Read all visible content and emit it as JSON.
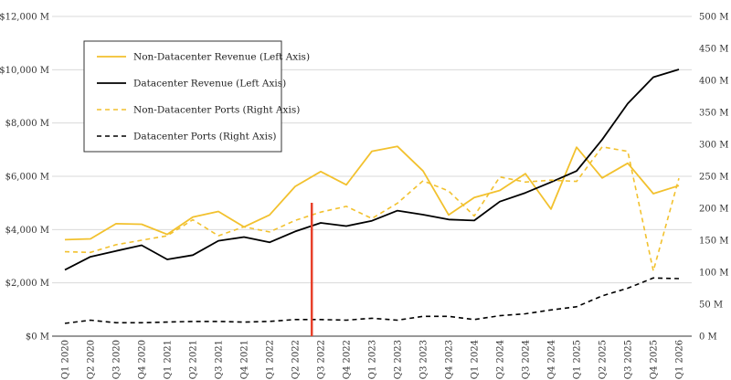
{
  "chart_data": {
    "type": "line",
    "categories": [
      "Q1 2020",
      "Q2 2020",
      "Q3 2020",
      "Q4 2020",
      "Q1 2021",
      "Q2 2021",
      "Q3 2021",
      "Q4 2021",
      "Q1 2022",
      "Q2 2022",
      "Q3 2022",
      "Q4 2022",
      "Q1 2023",
      "Q2 2023",
      "Q3 2023",
      "Q4 2023",
      "Q1 2024",
      "Q2 2024",
      "Q3 2024",
      "Q4 2024",
      "Q1 2025",
      "Q2 2025",
      "Q3 2025",
      "Q4 2025",
      "Q1 2026"
    ],
    "left_axis": {
      "ylim": [
        0,
        12000
      ],
      "ticks": [
        0,
        2000,
        4000,
        6000,
        8000,
        10000,
        12000
      ],
      "tick_labels": [
        "$0 M",
        "$2,000 M",
        "$4,000 M",
        "$6,000 M",
        "$8,000 M",
        "$10,000 M",
        "$12,000 M"
      ]
    },
    "right_axis": {
      "ylim": [
        0,
        500
      ],
      "ticks": [
        0,
        50,
        100,
        150,
        200,
        250,
        300,
        350,
        400,
        450,
        500
      ],
      "tick_labels": [
        "0 M",
        "50 M",
        "100 M",
        "150 M",
        "200 M",
        "250 M",
        "300 M",
        "350 M",
        "400 M",
        "450 M",
        "500 M"
      ]
    },
    "series": [
      {
        "name": "Non-Datacenter Revenue (Left Axis)",
        "axis": "left",
        "color": "#F2C12E",
        "dash": "solid",
        "values": [
          3620,
          3650,
          4220,
          4200,
          3820,
          4470,
          4680,
          4100,
          4550,
          5620,
          6180,
          5680,
          6940,
          7120,
          6200,
          4550,
          5200,
          5470,
          6100,
          4770,
          7090,
          5940,
          6490,
          5350,
          5650
        ]
      },
      {
        "name": "Datacenter Revenue (Left Axis)",
        "axis": "left",
        "color": "#000000",
        "dash": "solid",
        "values": [
          2490,
          2980,
          3200,
          3410,
          2880,
          3040,
          3580,
          3720,
          3520,
          3930,
          4250,
          4130,
          4330,
          4710,
          4560,
          4380,
          4340,
          5050,
          5380,
          5780,
          6200,
          7380,
          8730,
          9720,
          10010
        ]
      },
      {
        "name": "Non-Datacenter Ports (Right Axis)",
        "axis": "right",
        "color": "#F2C12E",
        "dash": "dashed",
        "values": [
          132,
          131,
          143,
          150,
          157,
          182,
          157,
          171,
          163,
          181,
          194,
          203,
          184,
          208,
          243,
          227,
          188,
          249,
          241,
          244,
          242,
          296,
          289,
          102,
          247
        ]
      },
      {
        "name": "Datacenter Ports (Right Axis)",
        "axis": "right",
        "color": "#000000",
        "dash": "dashed",
        "values": [
          20,
          25,
          21,
          21,
          22,
          23,
          23,
          22,
          23,
          26,
          26,
          25,
          28,
          25,
          31,
          31,
          26,
          32,
          35,
          41,
          46,
          63,
          75,
          91,
          90
        ]
      }
    ],
    "marker_line": {
      "color": "#E8402A",
      "at_category_index": 10
    },
    "legend": {
      "placement": "top-left"
    },
    "grid": {
      "horizontal": true,
      "vertical": false
    }
  }
}
